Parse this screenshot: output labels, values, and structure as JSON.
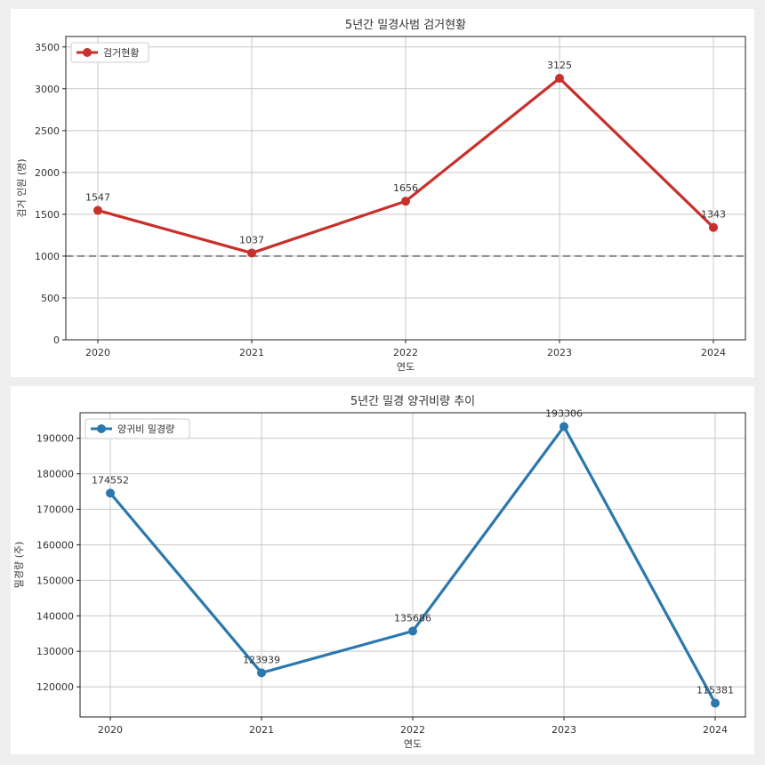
{
  "chart_data": [
    {
      "type": "line",
      "title": "5년간 밀경사범 검거현황",
      "xlabel": "연도",
      "ylabel": "검거 인원 (명)",
      "categories": [
        "2020",
        "2021",
        "2022",
        "2023",
        "2024"
      ],
      "series": [
        {
          "name": "검거현황",
          "values": [
            1547,
            1037,
            1656,
            3125,
            1343
          ],
          "color": "#c8302b"
        }
      ],
      "ylim": [
        0,
        3625
      ],
      "yticks": [
        0,
        500,
        1000,
        1500,
        2000,
        2500,
        3000,
        3500
      ],
      "reference_line": {
        "value": 1000,
        "style": "dashed",
        "color": "#888888"
      },
      "grid": true,
      "legend": "top-left"
    },
    {
      "type": "line",
      "title": "5년간 밀경 양귀비량 추이",
      "xlabel": "연도",
      "ylabel": "밀경량 (주)",
      "categories": [
        "2020",
        "2021",
        "2022",
        "2023",
        "2024"
      ],
      "series": [
        {
          "name": "양귀비 밀경량",
          "values": [
            174552,
            123939,
            135686,
            193306,
            115381
          ],
          "color": "#2a78ad"
        }
      ],
      "ylim": [
        111500,
        197200
      ],
      "yticks": [
        120000,
        130000,
        140000,
        150000,
        160000,
        170000,
        180000,
        190000
      ],
      "grid": true,
      "legend": "top-left"
    }
  ]
}
